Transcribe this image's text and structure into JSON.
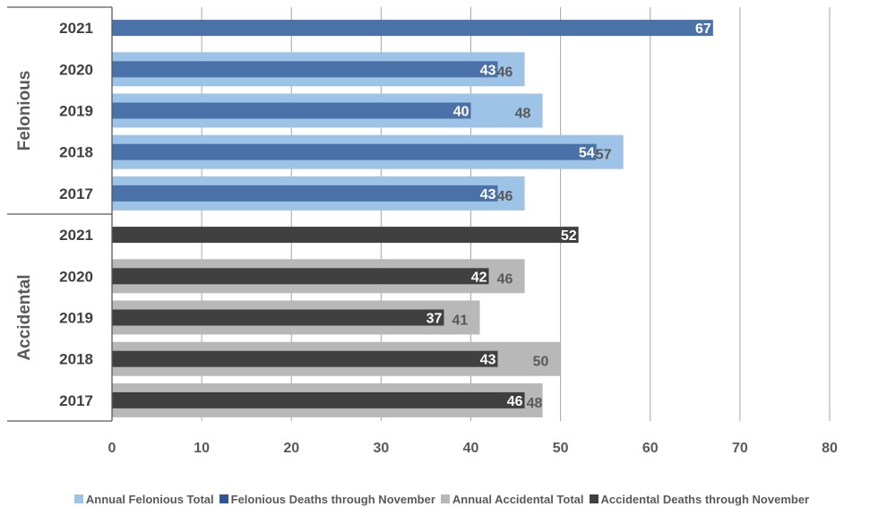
{
  "chart_data": {
    "type": "bar",
    "orientation": "horizontal",
    "xlim": [
      0,
      80
    ],
    "x_ticks": [
      "0",
      "10",
      "20",
      "30",
      "40",
      "50",
      "60",
      "70",
      "80"
    ],
    "grid": "vertical",
    "legend_position": "bottom",
    "groups": [
      {
        "name": "Felonious",
        "categories": [
          "2021",
          "2020",
          "2019",
          "2018",
          "2017"
        ],
        "total_series": "Annual Felonious Total",
        "ytd_series": "Felonious Deaths through November",
        "totals": [
          null,
          46,
          48,
          57,
          46
        ],
        "ytd": [
          67,
          43,
          40,
          54,
          43
        ],
        "total_color": "#9DC3E6",
        "ytd_color": "#4A72A8",
        "total_label_color": "#595959"
      },
      {
        "name": "Accidental",
        "categories": [
          "2021",
          "2020",
          "2019",
          "2018",
          "2017"
        ],
        "total_series": "Annual Accidental Total",
        "ytd_series": "Accidental Deaths through November",
        "totals": [
          null,
          46,
          41,
          50,
          48
        ],
        "ytd": [
          52,
          42,
          37,
          43,
          46
        ],
        "total_color": "#B8B8B8",
        "ytd_color": "#404040",
        "total_label_color": "#595959"
      }
    ],
    "legend": [
      {
        "name": "Annual Felonious Total",
        "color": "#9DC3E6"
      },
      {
        "name": "Felonious Deaths through November",
        "color": "#2F5597"
      },
      {
        "name": "Annual Accidental Total",
        "color": "#B8B8B8"
      },
      {
        "name": "Accidental Deaths through November",
        "color": "#404040"
      }
    ]
  }
}
